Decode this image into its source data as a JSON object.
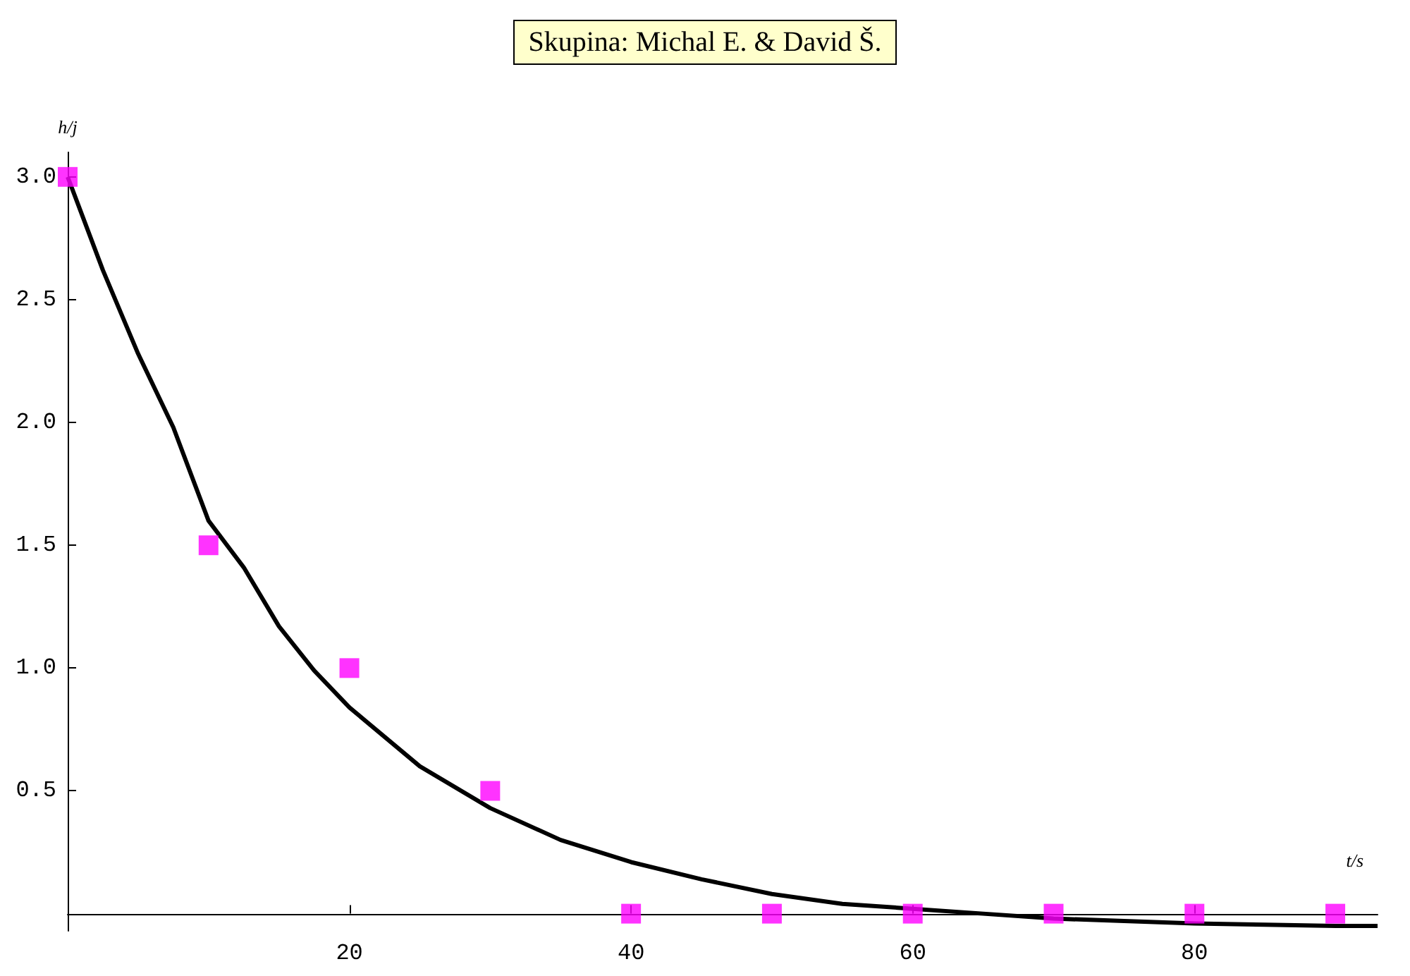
{
  "chart_data": {
    "type": "scatter",
    "title": "Skupina: Michal E. & David Š.",
    "xlabel": "t/s",
    "ylabel": "h/j",
    "x": [
      0,
      10,
      20,
      30,
      40,
      50,
      60,
      70,
      80,
      90
    ],
    "series": [
      {
        "color": "#ff00ff",
        "marker": "square",
        "values": [
          3.0,
          1.5,
          1.0,
          0.5,
          0,
          0,
          0,
          0,
          0,
          0
        ]
      },
      {
        "type": "line",
        "color": "#000000",
        "marker": "none",
        "line_style": "solid",
        "x": [
          0,
          2.5,
          5,
          7.5,
          10,
          12.5,
          15,
          17.5,
          20,
          25,
          30,
          35,
          40,
          45,
          50,
          55,
          60,
          65,
          70,
          75,
          80,
          85,
          90,
          93
        ],
        "values": [
          3.0,
          2.62,
          2.28,
          1.98,
          1.6,
          1.41,
          1.17,
          0.99,
          0.84,
          0.6,
          0.43,
          0.3,
          0.21,
          0.14,
          0.08,
          0.04,
          0.02,
          0,
          -0.02,
          -0.03,
          -0.04,
          -0.045,
          -0.05,
          -0.05
        ]
      }
    ],
    "xlim": [
      0,
      93
    ],
    "ylim": [
      -0.07,
      3.1
    ],
    "xticks": [
      20,
      40,
      60,
      80
    ],
    "yticks": [
      0.5,
      {
        "value": 1,
        "label": "1.0"
      },
      1.5,
      {
        "value": 2,
        "label": "2.0"
      },
      2.5,
      {
        "value": 3,
        "label": "3.0"
      }
    ],
    "grid": false
  }
}
